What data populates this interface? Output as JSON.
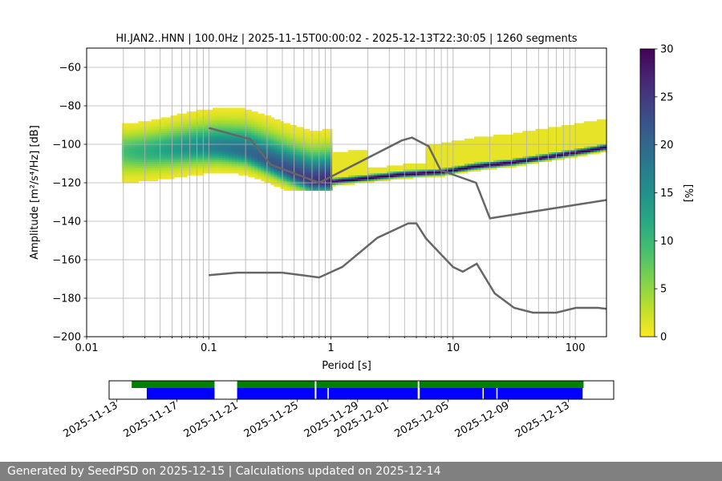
{
  "chart_data": [
    {
      "type": "heatmap",
      "title": "HI.JAN2..HNN | 100.0Hz | 2025-11-15T00:00:02 - 2025-12-13T22:30:05 | 1260 segments",
      "xlabel": "Period [s]",
      "ylabel": "Amplitude [m²/s⁴/Hz] [dB]",
      "x_scale": "log",
      "xlim": [
        0.01,
        180
      ],
      "ylim": [
        -200,
        -50
      ],
      "x_ticks": [
        "0.01",
        "0.1",
        "1",
        "10",
        "100"
      ],
      "y_ticks": [
        "−60",
        "−80",
        "−100",
        "−120",
        "−140",
        "−160",
        "−180",
        "−200"
      ],
      "grid": true,
      "colorbar": {
        "label": "[%]",
        "range": [
          0,
          30
        ],
        "ticks": [
          "0",
          "5",
          "10",
          "15",
          "20",
          "25",
          "30"
        ],
        "colormap": "viridis_r"
      },
      "mode_curve": {
        "period": [
          0.02,
          0.03,
          0.05,
          0.08,
          0.12,
          0.2,
          0.3,
          0.5,
          0.7,
          1,
          2,
          4,
          8,
          15,
          30,
          60,
          120,
          180
        ],
        "db": [
          -104,
          -104,
          -103,
          -102,
          -102,
          -104,
          -109,
          -116,
          -120,
          -120,
          -118,
          -116,
          -115,
          -112,
          -110,
          -107,
          -104,
          -102
        ]
      },
      "noise_models": [
        {
          "period": [
            0.1,
            0.22,
            0.32,
            0.8,
            3.8,
            4.6,
            6.3,
            7.9,
            15.4,
            20,
            354.8
          ],
          "db": [
            -91.5,
            -97.4,
            -110.5,
            -120,
            -98,
            -96.5,
            -101,
            -113.5,
            -120,
            -138.5,
            -126
          ]
        },
        {
          "period": [
            0.1,
            0.17,
            0.4,
            0.8,
            1.24,
            2.4,
            4.3,
            5,
            6,
            10,
            12,
            15.6,
            21.9,
            31.6,
            45,
            70,
            101,
            154,
            328,
            600,
            10000,
            100000
          ],
          "db": [
            -168,
            -166.7,
            -166.7,
            -169.2,
            -163.7,
            -148.6,
            -141.1,
            -141.1,
            -149,
            -163.8,
            -166.2,
            -162.1,
            -177.5,
            -185,
            -187.5,
            -187.5,
            -185,
            -185,
            -187.5,
            -184.4,
            -151.5,
            -103.1
          ]
        }
      ]
    },
    {
      "type": "timeline",
      "x_ticks": [
        "2025-11-13",
        "2025-11-17",
        "2025-11-21",
        "2025-11-25",
        "2025-11-29",
        "2025-12-01",
        "2025-12-05",
        "2025-12-09",
        "2025-12-13"
      ],
      "xlim": [
        "2025-11-12T12:00",
        "2025-12-16T00:00"
      ],
      "colors": {
        "data": "#008000",
        "used": "#0000ff"
      },
      "data_segments": [
        [
          "2025-11-14T00:00",
          "2025-11-19T12:00"
        ],
        [
          "2025-11-21T00:00",
          "2025-12-14T00:00"
        ]
      ],
      "used_segments": [
        [
          "2025-11-15T00:00",
          "2025-11-19T12:00"
        ],
        [
          "2025-11-21T00:00",
          "2025-11-26T04:00"
        ],
        [
          "2025-11-26T06:00",
          "2025-11-27T00:00"
        ],
        [
          "2025-11-27T02:00",
          "2025-12-03T00:00"
        ],
        [
          "2025-12-03T03:00",
          "2025-12-07T07:00"
        ],
        [
          "2025-12-07T09:00",
          "2025-12-08T05:00"
        ],
        [
          "2025-12-08T07:00",
          "2025-12-13T22:30"
        ]
      ],
      "white_marks": [
        "2025-11-26T05:00",
        "2025-12-03T01:00"
      ]
    }
  ],
  "footer": {
    "text": "Generated by SeedPSD on 2025-12-15 | Calculations updated on 2025-12-14"
  }
}
